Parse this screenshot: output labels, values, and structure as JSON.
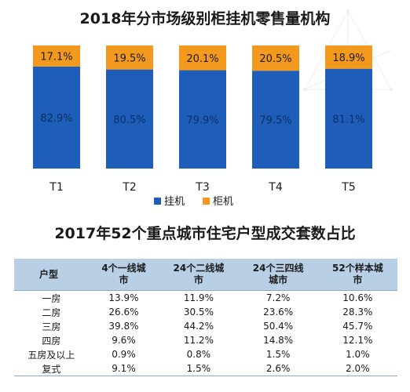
{
  "chart_data": [
    {
      "type": "bar",
      "stacked": true,
      "percent": true,
      "title": "2018年分市场级别柜挂机零售量机构",
      "categories": [
        "T1",
        "T2",
        "T3",
        "T4",
        "T5"
      ],
      "series": [
        {
          "name": "挂机",
          "color": "#1f5eb8",
          "values": [
            82.9,
            80.5,
            79.9,
            79.5,
            81.1
          ],
          "labels": [
            "82.9%",
            "80.5%",
            "79.9%",
            "79.5%",
            "81.1%"
          ]
        },
        {
          "name": "柜机",
          "color": "#f39a1e",
          "values": [
            17.1,
            19.5,
            20.1,
            20.5,
            18.9
          ],
          "labels": [
            "17.1%",
            "19.5%",
            "20.1%",
            "20.5%",
            "18.9%"
          ]
        }
      ],
      "ylim": [
        0,
        100
      ],
      "grid": false,
      "legend": "bottom"
    },
    {
      "type": "table",
      "title": "2017年52个重点城市住宅户型成交套数占比",
      "columns": [
        "户型",
        "4个一线城市",
        "24个二线城市",
        "24个三四线城市",
        "52个样本城市"
      ],
      "header_lines": [
        [
          "户型"
        ],
        [
          "4个一线城",
          "市"
        ],
        [
          "24个二线城",
          "市"
        ],
        [
          "24个三四线",
          "城市"
        ],
        [
          "52个样本城",
          "市"
        ]
      ],
      "rows": [
        [
          "一房",
          "13.9%",
          "11.9%",
          "7.2%",
          "10.6%"
        ],
        [
          "二房",
          "26.6%",
          "30.5%",
          "23.6%",
          "28.3%"
        ],
        [
          "三房",
          "39.8%",
          "44.2%",
          "50.4%",
          "45.7%"
        ],
        [
          "四房",
          "9.6%",
          "11.2%",
          "14.8%",
          "12.1%"
        ],
        [
          "五房及以上",
          "0.9%",
          "0.8%",
          "1.5%",
          "1.0%"
        ],
        [
          "复式",
          "9.1%",
          "1.5%",
          "2.6%",
          "2.0%"
        ]
      ],
      "header_color": "#b8cfe6"
    }
  ]
}
